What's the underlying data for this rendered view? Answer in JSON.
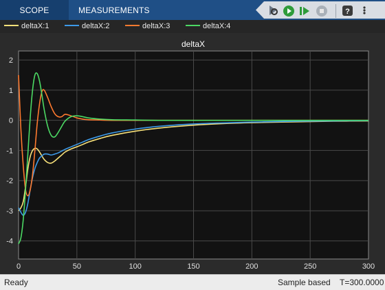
{
  "toolstrip": {
    "tabs": [
      {
        "label": "SCOPE"
      },
      {
        "label": "MEASUREMENTS"
      }
    ],
    "quick_icons": [
      "scope-settings-icon",
      "run-icon",
      "step-forward-icon",
      "stop-icon",
      "help-icon",
      "more-icon"
    ]
  },
  "legend": {
    "items": [
      {
        "label": "deltaX:1",
        "color": "#f7e17a"
      },
      {
        "label": "deltaX:2",
        "color": "#3d9ae8"
      },
      {
        "label": "deltaX:3",
        "color": "#ff7a2f"
      },
      {
        "label": "deltaX:4",
        "color": "#4cd964"
      }
    ]
  },
  "status": {
    "left": "Ready",
    "mode": "Sample based",
    "time": "T=300.0000"
  },
  "chart_data": {
    "type": "line",
    "title": "deltaX",
    "xlabel": "",
    "ylabel": "",
    "xlim": [
      0,
      300
    ],
    "ylim": [
      -4.6,
      2.3
    ],
    "xticks": [
      0,
      50,
      100,
      150,
      200,
      250,
      300
    ],
    "yticks": [
      -4,
      -3,
      -2,
      -1,
      0,
      1,
      2
    ],
    "grid": true,
    "legend_position": "top",
    "series": [
      {
        "name": "deltaX:1",
        "color": "#f7e17a",
        "x": [
          0,
          2,
          4,
          6,
          8,
          10,
          12,
          14,
          16,
          18,
          20,
          22,
          25,
          28,
          31,
          34,
          37,
          40,
          45,
          50,
          55,
          60,
          70,
          80,
          100,
          120,
          150,
          180,
          210,
          240,
          270,
          300
        ],
        "y": [
          -3.0,
          -2.9,
          -2.7,
          -2.2,
          -1.6,
          -1.2,
          -1.0,
          -0.93,
          -0.95,
          -1.05,
          -1.18,
          -1.3,
          -1.4,
          -1.42,
          -1.35,
          -1.25,
          -1.15,
          -1.05,
          -0.95,
          -0.88,
          -0.8,
          -0.72,
          -0.6,
          -0.5,
          -0.36,
          -0.26,
          -0.16,
          -0.1,
          -0.07,
          -0.05,
          -0.03,
          -0.02
        ]
      },
      {
        "name": "deltaX:2",
        "color": "#3d9ae8",
        "x": [
          0,
          2,
          4,
          6,
          8,
          10,
          12,
          14,
          16,
          18,
          20,
          22,
          25,
          28,
          31,
          34,
          37,
          40,
          45,
          50,
          55,
          60,
          70,
          80,
          100,
          120,
          150,
          180,
          210,
          240,
          270,
          300
        ],
        "y": [
          -2.9,
          -3.05,
          -3.15,
          -3.05,
          -2.75,
          -2.3,
          -1.9,
          -1.6,
          -1.4,
          -1.25,
          -1.18,
          -1.12,
          -1.12,
          -1.15,
          -1.12,
          -1.08,
          -1.02,
          -0.96,
          -0.88,
          -0.8,
          -0.72,
          -0.64,
          -0.52,
          -0.42,
          -0.29,
          -0.2,
          -0.12,
          -0.08,
          -0.05,
          -0.03,
          -0.02,
          -0.01
        ]
      },
      {
        "name": "deltaX:3",
        "color": "#ff7a2f",
        "x": [
          0,
          2,
          4,
          6,
          8,
          10,
          12,
          14,
          16,
          18,
          20,
          22,
          25,
          28,
          31,
          34,
          37,
          40,
          45,
          50,
          55,
          60,
          70,
          80,
          100,
          120,
          150,
          180,
          210,
          240,
          270,
          300
        ],
        "y": [
          1.5,
          -0.3,
          -1.5,
          -2.3,
          -2.5,
          -2.3,
          -1.8,
          -1.0,
          -0.1,
          0.55,
          0.95,
          1.0,
          0.75,
          0.45,
          0.22,
          0.12,
          0.12,
          0.2,
          0.15,
          0.08,
          0.04,
          0.02,
          0.01,
          0.0,
          0.0,
          0.0,
          0.0,
          0.0,
          0.0,
          0.0,
          0.0,
          0.0
        ]
      },
      {
        "name": "deltaX:4",
        "color": "#4cd964",
        "x": [
          0,
          2,
          4,
          6,
          8,
          10,
          12,
          14,
          16,
          18,
          20,
          22,
          25,
          28,
          31,
          34,
          37,
          40,
          45,
          50,
          55,
          60,
          70,
          80,
          100,
          120,
          150,
          180,
          210,
          240,
          270,
          300
        ],
        "y": [
          -4.1,
          -3.9,
          -3.3,
          -2.3,
          -1.1,
          0.1,
          1.0,
          1.5,
          1.55,
          1.3,
          0.85,
          0.35,
          -0.2,
          -0.5,
          -0.55,
          -0.4,
          -0.2,
          -0.02,
          0.12,
          0.15,
          0.12,
          0.08,
          0.04,
          0.02,
          0.01,
          0.0,
          0.0,
          0.0,
          0.0,
          0.0,
          0.0,
          0.0
        ]
      }
    ]
  }
}
